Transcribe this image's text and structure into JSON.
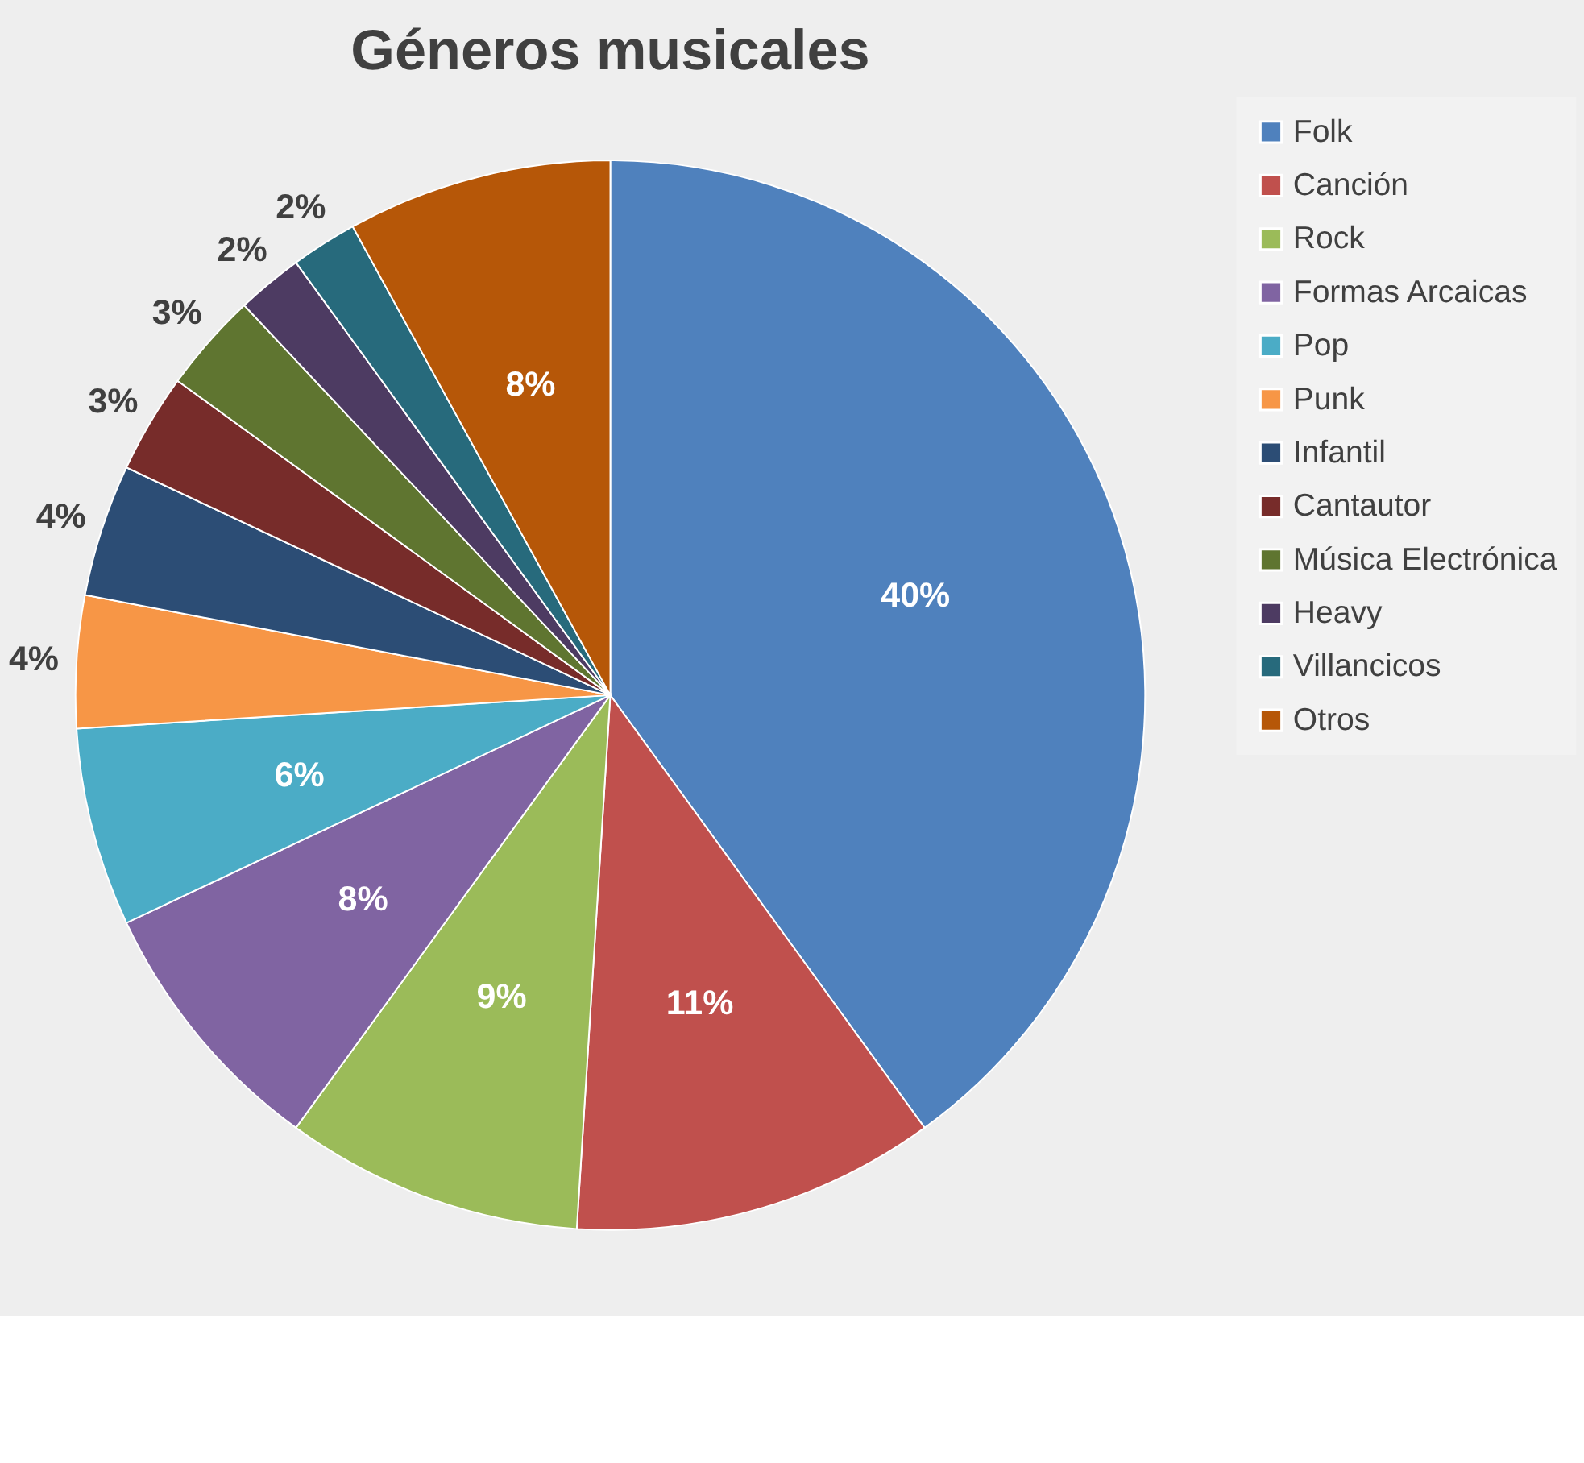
{
  "chart_data": {
    "type": "pie",
    "title": "Géneros musicales",
    "categories": [
      "Folk",
      "Canción",
      "Rock",
      "Formas Arcaicas",
      "Pop",
      "Punk",
      "Infantil",
      "Cantautor",
      "Música Electrónica",
      "Heavy",
      "Villancicos",
      "Otros"
    ],
    "values": [
      40,
      11,
      9,
      8,
      6,
      4,
      4,
      3,
      3,
      2,
      2,
      8
    ],
    "value_labels": [
      "40%",
      "11%",
      "9%",
      "8%",
      "6%",
      "4%",
      "4%",
      "3%",
      "3%",
      "2%",
      "2%",
      "8%"
    ],
    "colors": [
      "#4f81bd",
      "#c0504d",
      "#9bbb59",
      "#8064a2",
      "#4bacc6",
      "#f79646",
      "#2c4d75",
      "#772c2a",
      "#5f7530",
      "#4d3b62",
      "#276a7c",
      "#b65708"
    ],
    "legend": "right"
  }
}
